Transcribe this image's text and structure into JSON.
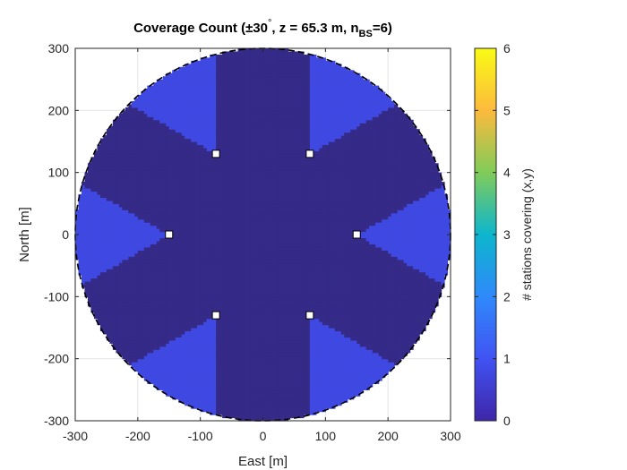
{
  "chart_data": {
    "type": "heatmap",
    "title": {
      "prefix": "Coverage Count (",
      "pm": "±30",
      "deg": "°",
      "mid": ", z = 65.3 m, n",
      "sub": "BS",
      "suffix": "=6)"
    },
    "xlabel": "East [m]",
    "ylabel": "North [m]",
    "xlim": [
      -300,
      300
    ],
    "ylim": [
      -300,
      300
    ],
    "xticks": [
      -300,
      -200,
      -100,
      0,
      100,
      200,
      300
    ],
    "yticks": [
      -300,
      -200,
      -100,
      0,
      100,
      200,
      300
    ],
    "grid": true,
    "boundary": {
      "shape": "circle",
      "radius": 300,
      "style": "dashed",
      "color": "#000000"
    },
    "field": {
      "description_values": "count of base stations whose ±30° sector covers each (x,y) inside the circle",
      "sector_half_angle_deg": 30,
      "station_orientation": "outward"
    },
    "stations": [
      {
        "x": 150,
        "y": 0
      },
      {
        "x": 75,
        "y": 130
      },
      {
        "x": -75,
        "y": 130
      },
      {
        "x": -150,
        "y": 0
      },
      {
        "x": -75,
        "y": -130
      },
      {
        "x": 75,
        "y": -130
      }
    ],
    "colorbar": {
      "label": "# stations covering (x,y)",
      "limits": [
        0,
        6
      ],
      "ticks": [
        0,
        1,
        2,
        3,
        4,
        5,
        6
      ],
      "colormap": "parula",
      "colors": [
        "#3e26a8",
        "#4153f3",
        "#2f89fb",
        "#0db6cd",
        "#81cc59",
        "#fcba3d",
        "#f9fb15"
      ],
      "value_colors": {
        "0": "#352a87",
        "1": "#3f49e2",
        "2": "#2894e6",
        "3": "#1cb7c7",
        "4": "#7ec857",
        "5": "#f7ba3f",
        "6": "#f2f21c"
      }
    }
  }
}
